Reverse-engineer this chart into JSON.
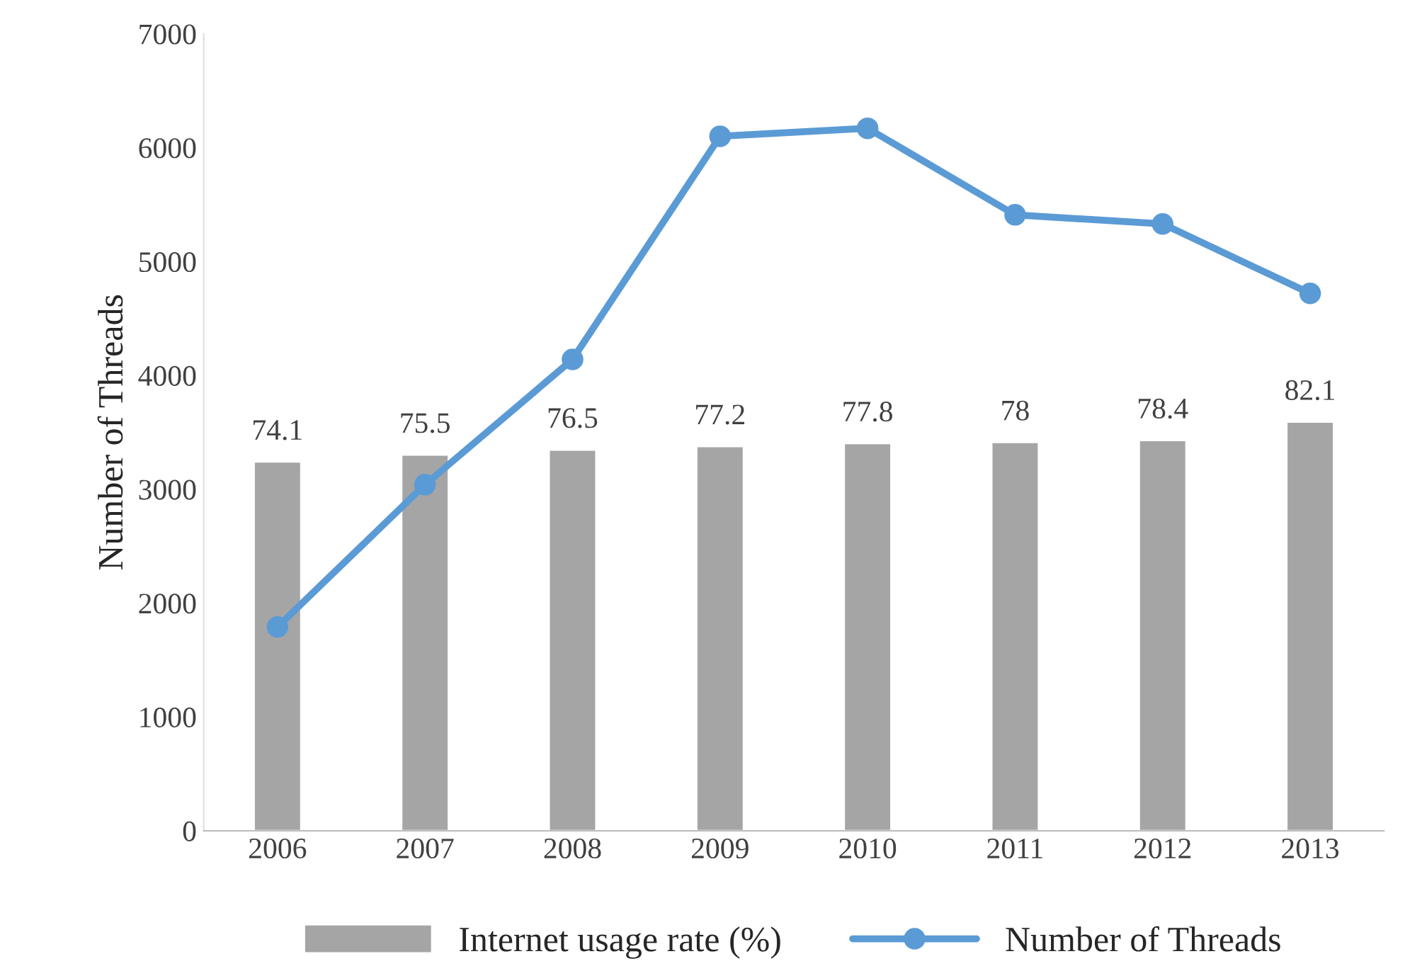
{
  "chart_data": {
    "type": "line",
    "ylabel": "Number of Threads",
    "categories": [
      "2006",
      "2007",
      "2008",
      "2009",
      "2010",
      "2011",
      "2012",
      "2013"
    ],
    "series": [
      {
        "name": "Internet usage rate (%)",
        "type": "bar",
        "axis": "y2",
        "color": "#a5a5a5",
        "values": [
          74.1,
          75.5,
          76.5,
          77.2,
          77.8,
          78,
          78.4,
          82.1
        ],
        "value_labels": [
          "74.1",
          "75.5",
          "76.5",
          "77.2",
          "77.8",
          "78",
          "78.4",
          "82.1"
        ]
      },
      {
        "name": "Number of Threads",
        "color": "#5b9bd5",
        "marker": "circle",
        "values": [
          1790,
          3040,
          4140,
          6100,
          6170,
          5410,
          5330,
          4720
        ]
      }
    ],
    "ylim": [
      0,
      7000
    ],
    "yticks": [
      0,
      1000,
      2000,
      3000,
      4000,
      5000,
      6000,
      7000
    ],
    "y2lim": [
      0,
      160
    ],
    "grid": false,
    "legend": "bottom"
  }
}
